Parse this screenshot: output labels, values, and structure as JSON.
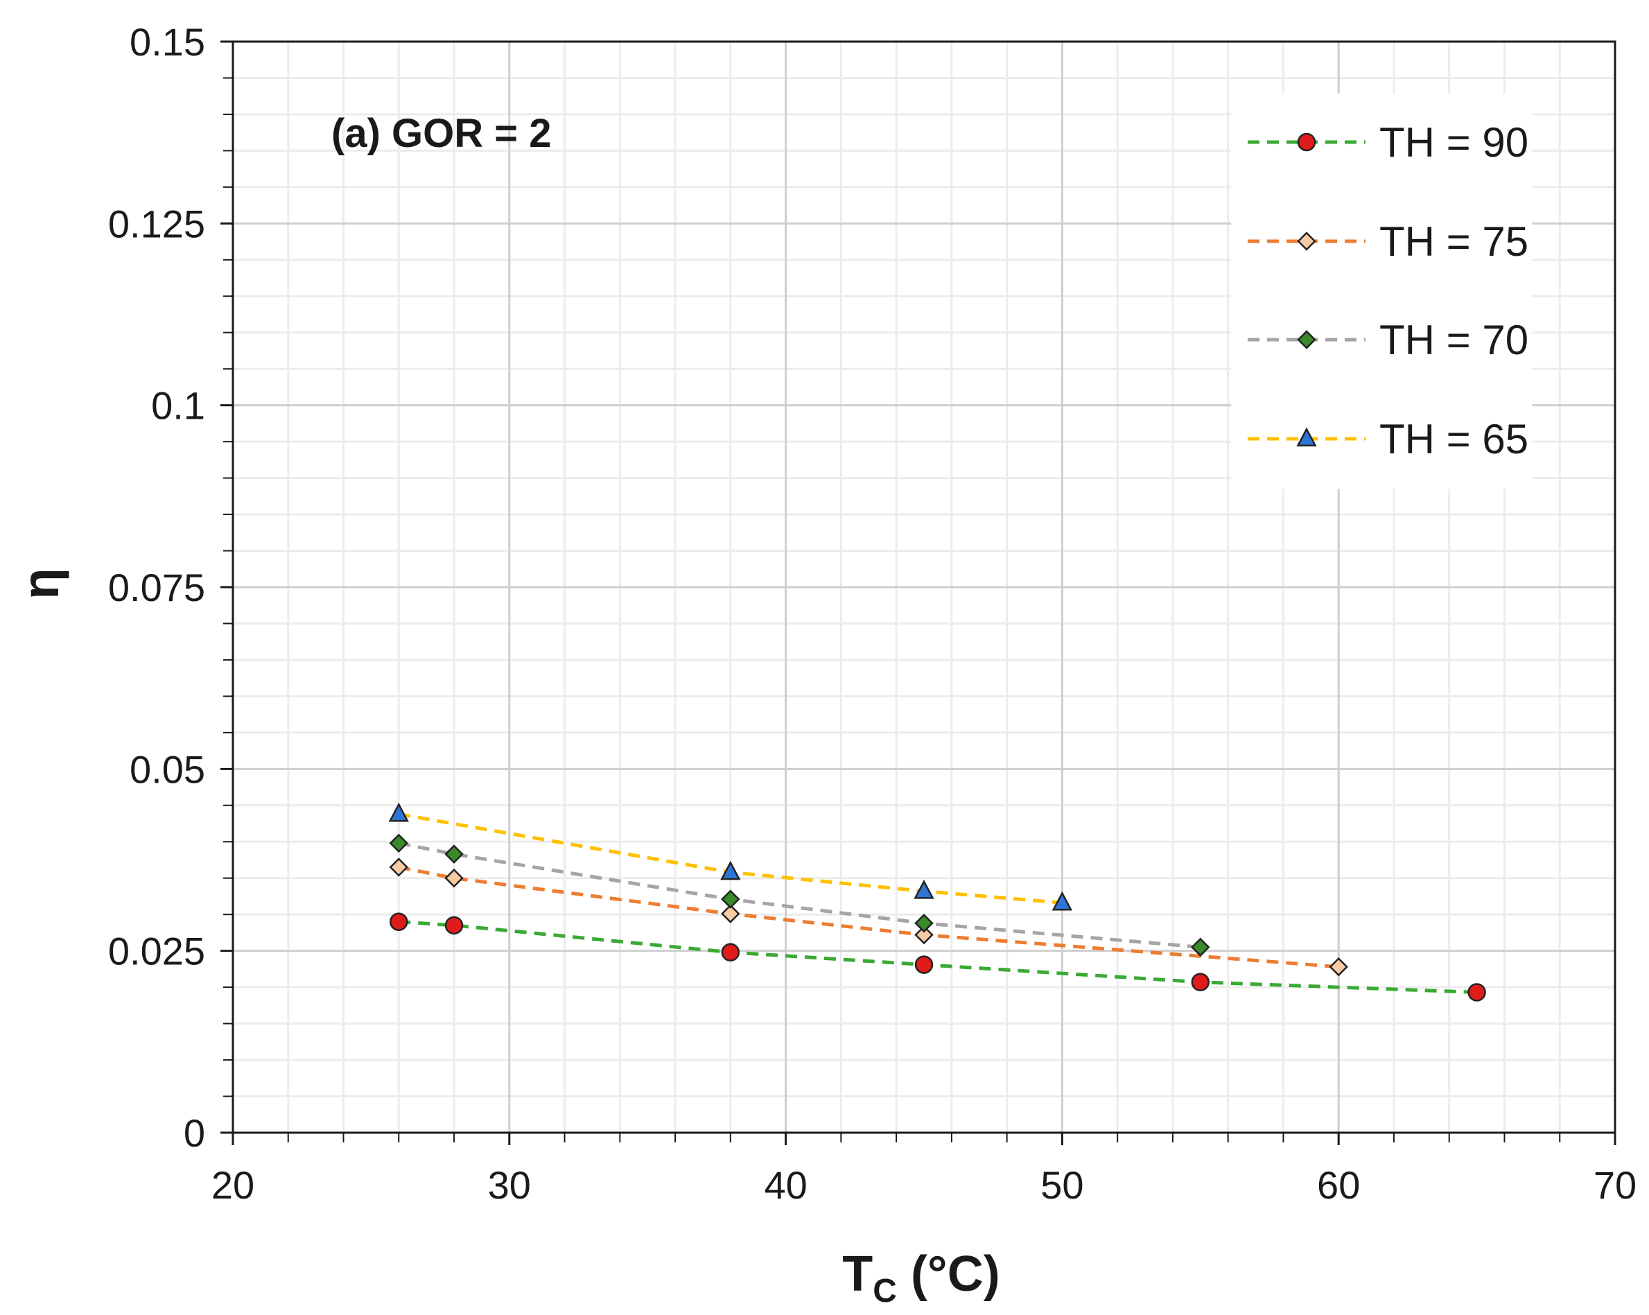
{
  "chart_data": {
    "type": "line",
    "annotation": "(a) GOR = 2",
    "xlabel": {
      "main": "T",
      "sub": "C",
      "suffix": " (°C)"
    },
    "ylabel": "η",
    "xlim": [
      20,
      70
    ],
    "ylim": [
      0,
      0.15
    ],
    "xticks": [
      20,
      30,
      40,
      50,
      60,
      70
    ],
    "xtick_labels": [
      "20",
      "30",
      "40",
      "50",
      "60",
      "70"
    ],
    "yticks": [
      0,
      0.025,
      0.05,
      0.075,
      0.1,
      0.125,
      0.15
    ],
    "ytick_labels": [
      "0",
      "0.025",
      "0.05",
      "0.075",
      "0.1",
      "0.125",
      "0.15"
    ],
    "grid": true,
    "legend_position": "top-right",
    "series": [
      {
        "name": "TH = 90",
        "line_color": "#3aa935",
        "marker": "circle",
        "marker_color": "#e01b1b",
        "x": [
          26,
          28,
          38,
          45,
          55,
          65
        ],
        "y": [
          0.029,
          0.0285,
          0.0248,
          0.0231,
          0.0207,
          0.0193
        ]
      },
      {
        "name": "TH = 75",
        "line_color": "#ed7d31",
        "marker": "diamond",
        "marker_color": "#f8cba5",
        "x": [
          26,
          28,
          38,
          45,
          60
        ],
        "y": [
          0.0365,
          0.035,
          0.0301,
          0.0272,
          0.0228
        ]
      },
      {
        "name": "TH = 70",
        "line_color": "#a5a5a5",
        "marker": "diamond",
        "marker_color": "#3a8a2a",
        "x": [
          26,
          28,
          38,
          45,
          55
        ],
        "y": [
          0.0398,
          0.0383,
          0.0321,
          0.0288,
          0.0255
        ]
      },
      {
        "name": "TH = 65",
        "line_color": "#ffc000",
        "marker": "triangle",
        "marker_color": "#2e75d6",
        "x": [
          26,
          38,
          45,
          50
        ],
        "y": [
          0.0438,
          0.0358,
          0.0332,
          0.0316
        ]
      }
    ]
  }
}
